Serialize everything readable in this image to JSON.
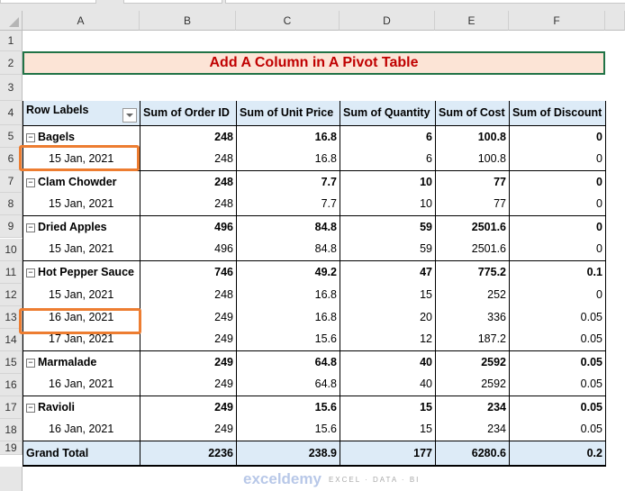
{
  "columns": [
    "A",
    "B",
    "C",
    "D",
    "E",
    "F"
  ],
  "rows": [
    "1",
    "2",
    "3",
    "4",
    "5",
    "6",
    "7",
    "8",
    "9",
    "10",
    "11",
    "12",
    "13",
    "14",
    "15",
    "16",
    "17",
    "18",
    "19"
  ],
  "title": "Add A Column in A Pivot Table",
  "headers": [
    "Row Labels",
    "Sum of Order ID",
    "Sum of Unit Price",
    "Sum of Quantity",
    "Sum of Cost",
    "Sum of Discount"
  ],
  "body": [
    {
      "type": "group",
      "label": "Bagels",
      "v": [
        "248",
        "16.8",
        "6",
        "100.8",
        "0"
      ]
    },
    {
      "type": "sub",
      "label": "15 Jan, 2021",
      "v": [
        "248",
        "16.8",
        "6",
        "100.8",
        "0"
      ]
    },
    {
      "type": "group",
      "label": "Clam Chowder",
      "v": [
        "248",
        "7.7",
        "10",
        "77",
        "0"
      ]
    },
    {
      "type": "sub",
      "label": "15 Jan, 2021",
      "v": [
        "248",
        "7.7",
        "10",
        "77",
        "0"
      ]
    },
    {
      "type": "group",
      "label": "Dried Apples",
      "v": [
        "496",
        "84.8",
        "59",
        "2501.6",
        "0"
      ]
    },
    {
      "type": "sub",
      "label": "15 Jan, 2021",
      "v": [
        "496",
        "84.8",
        "59",
        "2501.6",
        "0"
      ]
    },
    {
      "type": "group",
      "label": "Hot Pepper Sauce",
      "v": [
        "746",
        "49.2",
        "47",
        "775.2",
        "0.1"
      ]
    },
    {
      "type": "sub",
      "label": "15 Jan, 2021",
      "v": [
        "248",
        "16.8",
        "15",
        "252",
        "0"
      ]
    },
    {
      "type": "sub",
      "label": "16 Jan, 2021",
      "v": [
        "249",
        "16.8",
        "20",
        "336",
        "0.05"
      ]
    },
    {
      "type": "sub",
      "label": "17 Jan, 2021",
      "v": [
        "249",
        "15.6",
        "12",
        "187.2",
        "0.05"
      ]
    },
    {
      "type": "group",
      "label": "Marmalade",
      "v": [
        "249",
        "64.8",
        "40",
        "2592",
        "0.05"
      ]
    },
    {
      "type": "sub",
      "label": "16 Jan, 2021",
      "v": [
        "249",
        "64.8",
        "40",
        "2592",
        "0.05"
      ]
    },
    {
      "type": "group",
      "label": "Ravioli",
      "v": [
        "249",
        "15.6",
        "15",
        "234",
        "0.05"
      ]
    },
    {
      "type": "sub",
      "label": "16 Jan, 2021",
      "v": [
        "249",
        "15.6",
        "15",
        "234",
        "0.05"
      ]
    }
  ],
  "total": {
    "label": "Grand Total",
    "v": [
      "2236",
      "238.9",
      "177",
      "6280.6",
      "0.2"
    ]
  },
  "watermark": {
    "name": "exceldemy",
    "tagline": "EXCEL · DATA · BI"
  }
}
